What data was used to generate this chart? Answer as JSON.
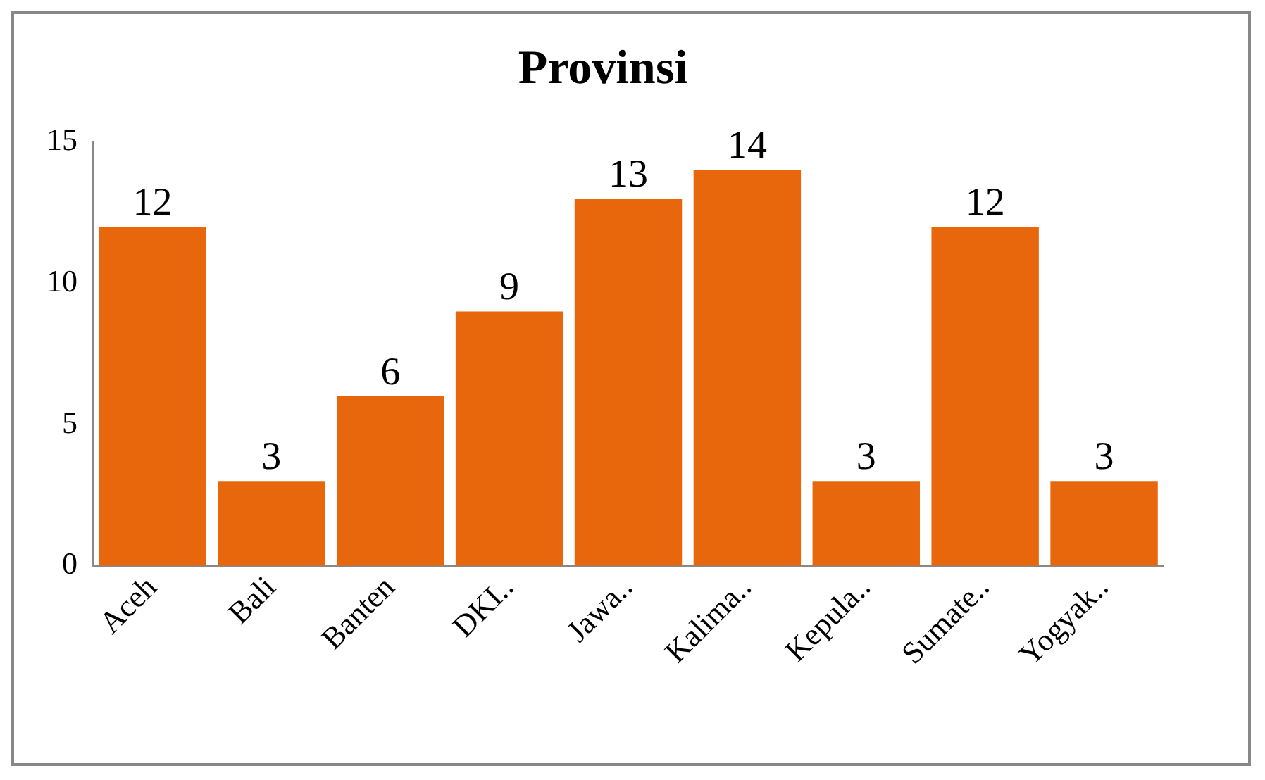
{
  "chart_data": {
    "type": "bar",
    "title": "Provinsi",
    "categories": [
      "Aceh",
      "Bali",
      "Banten",
      "DKI..",
      "Jawa..",
      "Kalima..",
      "Kepula..",
      "Sumate..",
      "Yogyak.."
    ],
    "values": [
      12,
      3,
      6,
      9,
      13,
      14,
      3,
      12,
      3
    ],
    "color": "#e8670c",
    "ylim": [
      0,
      15
    ],
    "yticks": [
      0,
      5,
      10,
      15
    ],
    "data_labels": true,
    "grid": false,
    "legend": false
  }
}
